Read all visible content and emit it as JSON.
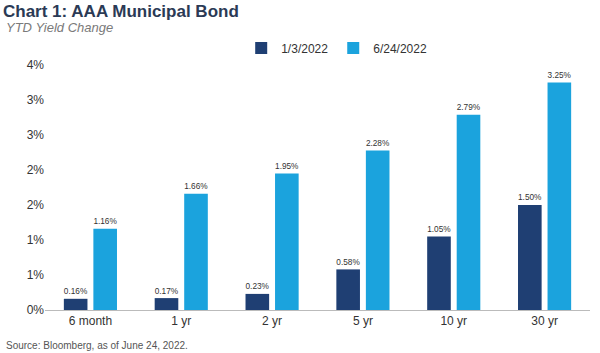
{
  "chart_data": {
    "type": "bar",
    "title": "Chart 1: AAA Municipal Bond",
    "subtitle": "YTD Yield Change",
    "source": "Source: Bloomberg, as of June 24, 2022.",
    "categories": [
      "6 month",
      "1 yr",
      "2 yr",
      "5 yr",
      "10 yr",
      "30 yr"
    ],
    "series": [
      {
        "name": "1/3/2022",
        "color": "#1f3f73",
        "values": [
          0.16,
          0.17,
          0.23,
          0.58,
          1.05,
          1.5
        ],
        "value_labels": [
          "0.16%",
          "0.17%",
          "0.23%",
          "0.58%",
          "1.05%",
          "1.50%"
        ]
      },
      {
        "name": "6/24/2022",
        "color": "#1ba3dd",
        "values": [
          1.16,
          1.66,
          1.95,
          2.28,
          2.79,
          3.25
        ],
        "value_labels": [
          "1.16%",
          "1.66%",
          "1.95%",
          "2.28%",
          "2.79%",
          "3.25%"
        ]
      }
    ],
    "ylim": [
      0,
      3.5
    ],
    "yticks": [
      {
        "value": 0,
        "label": "0%"
      },
      {
        "value": 0.5,
        "label": "1%"
      },
      {
        "value": 1,
        "label": "1%"
      },
      {
        "value": 1.5,
        "label": "2%"
      },
      {
        "value": 2,
        "label": "2%"
      },
      {
        "value": 2.5,
        "label": "3%"
      },
      {
        "value": 3,
        "label": "3%"
      },
      {
        "value": 3.5,
        "label": "4%"
      }
    ],
    "grid": false,
    "legend": "top",
    "data_labels": true
  }
}
